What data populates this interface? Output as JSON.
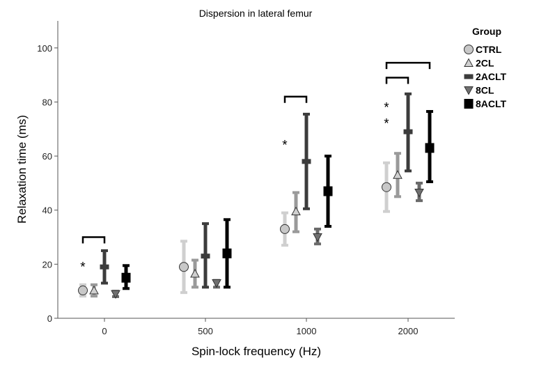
{
  "chart_data": {
    "type": "errorbar",
    "title": "Dispersion in lateral femur",
    "xlabel": "Spin-lock frequency (Hz)",
    "ylabel": "Relaxation time (ms)",
    "ylim": [
      0,
      110
    ],
    "yticks": [
      0,
      20,
      40,
      60,
      80,
      100
    ],
    "categories": [
      "0",
      "500",
      "1000",
      "2000"
    ],
    "legend": {
      "title": "Group",
      "position": "top-right"
    },
    "series": [
      {
        "name": "CTRL",
        "marker": "circle",
        "color": "#c8c8c8",
        "bar_color": "#cfcfcf",
        "mean": [
          10.3,
          19,
          33,
          48.5
        ],
        "low": [
          8.2,
          9.5,
          27,
          39.5
        ],
        "high": [
          12.4,
          28.5,
          39,
          57.5
        ]
      },
      {
        "name": "2CL",
        "marker": "triangle-up",
        "color": "#d0d0d0",
        "bar_color": "#9a9a9a",
        "mean": [
          10.3,
          16.5,
          39.5,
          53
        ],
        "low": [
          8.2,
          11.5,
          32,
          45
        ],
        "high": [
          12.4,
          21.5,
          46.5,
          61
        ]
      },
      {
        "name": "2ACLT",
        "marker": "bar",
        "color": "#3c3c3c",
        "bar_color": "#3c3c3c",
        "mean": [
          19,
          23,
          58,
          69
        ],
        "low": [
          13,
          11.5,
          40.5,
          54.5
        ],
        "high": [
          25,
          35,
          75.5,
          83
        ]
      },
      {
        "name": "8CL",
        "marker": "triangle-down",
        "color": "#707070",
        "bar_color": "#6a6a6a",
        "mean": [
          9,
          13,
          30,
          46.5
        ],
        "low": [
          8,
          11.5,
          27.5,
          43.5
        ],
        "high": [
          10,
          14,
          33,
          50
        ]
      },
      {
        "name": "8ACLT",
        "marker": "square",
        "color": "#000000",
        "bar_color": "#000000",
        "mean": [
          15,
          24,
          47,
          63
        ],
        "low": [
          11,
          11.5,
          34,
          50.5
        ],
        "high": [
          19.5,
          36.5,
          60,
          76.5
        ]
      }
    ],
    "significance": {
      "brackets": [
        {
          "category": 0,
          "from": "CTRL",
          "to": "2ACLT",
          "y": 30
        },
        {
          "category": 2,
          "from": "CTRL",
          "to": "2ACLT",
          "y": 82
        },
        {
          "category": 3,
          "from": "CTRL",
          "to": "2ACLT",
          "y": 89
        },
        {
          "category": 3,
          "from": "CTRL",
          "to": "8ACLT",
          "y": 94.5
        }
      ],
      "asterisks": [
        {
          "category": 0,
          "near": "CTRL",
          "y": 19.5,
          "text": "*"
        },
        {
          "category": 2,
          "near": "CTRL",
          "y": 64.5,
          "text": "*"
        },
        {
          "category": 3,
          "near": "CTRL",
          "y": 78.5,
          "text": "*"
        },
        {
          "category": 3,
          "near": "CTRL",
          "y": 72.5,
          "text": "*"
        }
      ]
    }
  }
}
